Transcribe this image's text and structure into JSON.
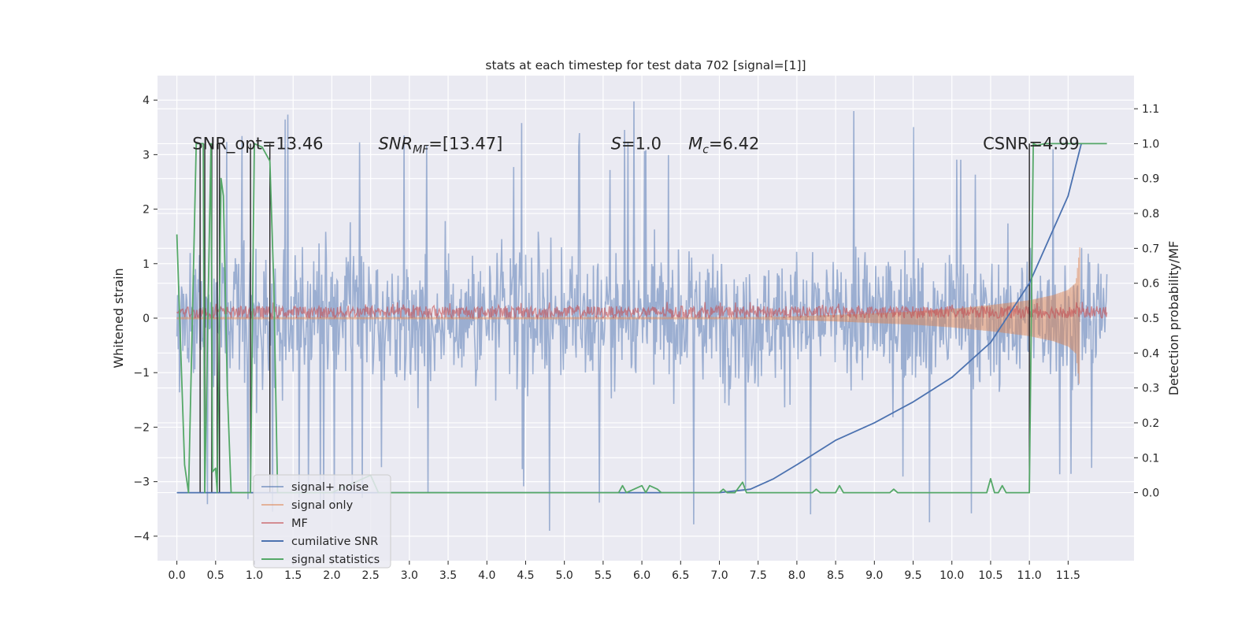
{
  "chart_data": {
    "type": "line",
    "title": "stats at each timestep for test data 702 [signal=[1]]",
    "ylabel": "Whitened strain",
    "y2label": "Detection probability/MF",
    "xlim": [
      -0.25,
      12.35
    ],
    "ylim": [
      -4.45,
      4.45
    ],
    "y2lim": [
      -0.195,
      1.195
    ],
    "x_ticks": [
      0.0,
      0.5,
      1.0,
      1.5,
      2.0,
      2.5,
      3.0,
      3.5,
      4.0,
      4.5,
      5.0,
      5.5,
      6.0,
      6.5,
      7.0,
      7.5,
      8.0,
      8.5,
      9.0,
      9.5,
      10.0,
      10.5,
      11.0,
      11.5
    ],
    "x_tick_labels": [
      "0.0",
      "0.5",
      "1.0",
      "1.5",
      "2.0",
      "2.5",
      "3.0",
      "3.5",
      "4.0",
      "4.5",
      "5.0",
      "5.5",
      "6.0",
      "6.5",
      "7.0",
      "7.5",
      "8.0",
      "8.5",
      "9.0",
      "9.5",
      "10.0",
      "10.5",
      "11.0",
      "11.5"
    ],
    "y_ticks": [
      -4,
      -3,
      -2,
      -1,
      0,
      1,
      2,
      3,
      4
    ],
    "y_tick_labels": [
      "−4",
      "−3",
      "−2",
      "−1",
      "0",
      "1",
      "2",
      "3",
      "4"
    ],
    "y2_ticks": [
      0.0,
      0.1,
      0.2,
      0.3,
      0.4,
      0.5,
      0.6,
      0.7,
      0.8,
      0.9,
      1.0,
      1.1
    ],
    "y2_tick_labels": [
      "0.0",
      "0.1",
      "0.2",
      "0.3",
      "0.4",
      "0.5",
      "0.6",
      "0.7",
      "0.8",
      "0.9",
      "1.0",
      "1.1"
    ],
    "grid": true,
    "legend_position": "lower-left",
    "annotations": [
      {
        "text": "SNR_opt=13.46",
        "x": 0.2,
        "y": 3.2
      },
      {
        "text_main": "SNR",
        "text_sub": "MF",
        "text_rest": "=[13.47]",
        "x": 2.6,
        "y": 3.2,
        "italic_main": true
      },
      {
        "text_main": "S",
        "text_sub": "",
        "text_rest": "=1.0",
        "x": 5.6,
        "y": 3.2,
        "italic_main": true
      },
      {
        "text_main": "M",
        "text_sub": "c",
        "text_rest": "=6.42",
        "x": 6.6,
        "y": 3.2,
        "italic_main": true
      },
      {
        "text": "CSNR=4.99",
        "x": 10.4,
        "y": 3.2
      }
    ],
    "series": [
      {
        "name": "signal+ noise",
        "color": "#4c72b0",
        "alpha": 0.5,
        "axis": "left",
        "x_range": [
          0.0,
          12.0
        ],
        "typical_band": [
          -1.3,
          1.3
        ],
        "approx_extremes": [
          -4.1,
          4.1
        ]
      },
      {
        "name": "signal only",
        "color": "#dd8452",
        "alpha": 0.5,
        "axis": "left",
        "x_range": [
          0.0,
          11.65
        ],
        "envelope": {
          "x": [
            7.5,
            8.5,
            9.5,
            10.0,
            10.5,
            11.0,
            11.3,
            11.5,
            11.6,
            11.65
          ],
          "amplitude": [
            0.01,
            0.06,
            0.12,
            0.17,
            0.24,
            0.33,
            0.42,
            0.52,
            0.65,
            1.3
          ]
        }
      },
      {
        "name": "MF",
        "color": "#c44e52",
        "alpha": 0.6,
        "axis": "left",
        "x_range": [
          0.0,
          12.0
        ],
        "typical_band": [
          0.0,
          0.22
        ]
      },
      {
        "name": "cumilative SNR",
        "color": "#4c72b0",
        "alpha": 1.0,
        "axis": "right",
        "x": [
          0.0,
          7.0,
          7.4,
          7.7,
          8.0,
          8.5,
          9.0,
          9.5,
          10.0,
          10.5,
          11.0,
          11.5,
          11.67
        ],
        "y": [
          0.0,
          0.0,
          0.01,
          0.04,
          0.08,
          0.15,
          0.2,
          0.26,
          0.33,
          0.43,
          0.6,
          0.85,
          1.0
        ]
      },
      {
        "name": "signal statistics",
        "color": "#55a868",
        "alpha": 1.0,
        "axis": "right",
        "x": [
          0.0,
          0.1,
          0.15,
          0.25,
          0.27,
          0.34,
          0.36,
          0.44,
          0.46,
          0.5,
          0.52,
          0.57,
          0.6,
          0.65,
          0.7,
          0.95,
          1.0,
          1.1,
          1.2,
          1.25,
          1.3,
          2.0,
          2.5,
          2.6,
          3.0,
          5.7,
          5.75,
          5.8,
          6.0,
          6.05,
          6.1,
          6.2,
          6.25,
          6.3,
          7.0,
          7.05,
          7.1,
          7.2,
          7.3,
          7.35,
          7.4,
          7.5,
          8.0,
          8.2,
          8.25,
          8.3,
          8.5,
          8.55,
          8.6,
          9.2,
          9.25,
          9.3,
          10.4,
          10.45,
          10.5,
          10.55,
          10.6,
          10.65,
          10.7,
          10.9,
          11.0,
          11.05,
          11.1,
          11.2,
          11.6,
          11.65,
          11.67,
          11.7,
          12.0
        ],
        "y": [
          0.74,
          0.08,
          0.0,
          1.0,
          1.0,
          1.0,
          0.0,
          1.0,
          0.06,
          0.07,
          0.0,
          0.9,
          0.85,
          0.3,
          0.0,
          0.0,
          1.0,
          0.99,
          0.95,
          0.6,
          0.0,
          0.0,
          0.05,
          0.0,
          0.0,
          0.0,
          0.02,
          0.0,
          0.02,
          0.0,
          0.02,
          0.01,
          0.0,
          0.0,
          0.0,
          0.01,
          0.0,
          0.0,
          0.03,
          0.0,
          0.0,
          0.0,
          0.0,
          0.0,
          0.01,
          0.0,
          0.0,
          0.02,
          0.0,
          0.0,
          0.01,
          0.0,
          0.0,
          0.0,
          0.04,
          0.0,
          0.0,
          0.02,
          0.0,
          0.0,
          0.0,
          1.0,
          0.995,
          1.0,
          1.0,
          1.0,
          1.0,
          1.0,
          1.0
        ]
      }
    ],
    "vertical_lines": {
      "color": "#262626",
      "x": [
        0.3,
        0.36,
        0.45,
        0.52,
        0.55,
        0.95,
        1.2,
        11.0
      ],
      "ymin": 0.0,
      "ymax": 1.0
    }
  }
}
